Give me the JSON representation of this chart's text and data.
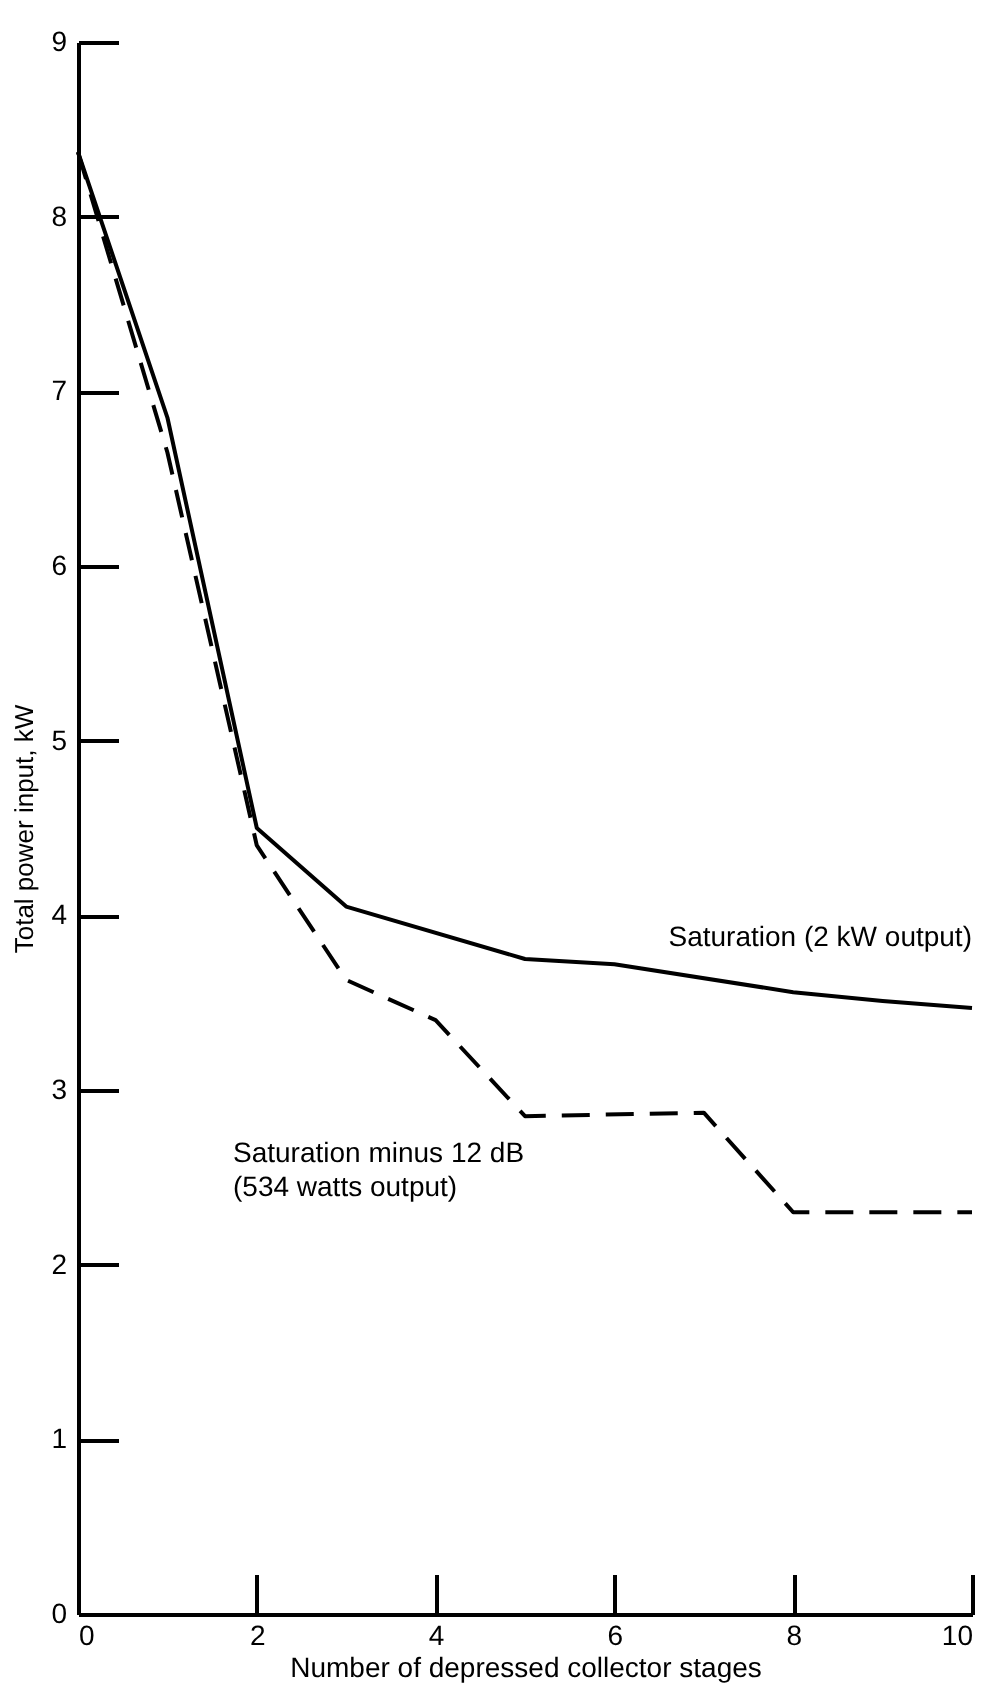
{
  "chart_data": {
    "type": "line",
    "xlabel": "Number of depressed collector stages",
    "ylabel": "Total power input, kW",
    "xlim": [
      0,
      10
    ],
    "ylim": [
      0,
      9
    ],
    "xticks": [
      0,
      2,
      4,
      6,
      8,
      10
    ],
    "yticks": [
      0,
      1,
      2,
      3,
      4,
      5,
      6,
      7,
      8,
      9
    ],
    "grid": false,
    "legend": false,
    "marker": "none",
    "series": [
      {
        "name": "Saturation (2 kW output)",
        "color": "#000000",
        "line_style": "solid",
        "x": [
          0,
          1,
          2,
          3,
          5,
          6,
          8,
          9,
          10
        ],
        "values": [
          8.37,
          6.85,
          4.5,
          4.05,
          3.75,
          3.72,
          3.56,
          3.51,
          3.47
        ]
      },
      {
        "name": "Saturation minus 12 dB\n(534 watts output)",
        "color": "#000000",
        "line_style": "dashed",
        "x": [
          0,
          1,
          2,
          3,
          4,
          5,
          7,
          8,
          10
        ],
        "values": [
          8.37,
          6.65,
          4.4,
          3.63,
          3.4,
          2.85,
          2.87,
          2.3,
          2.3
        ]
      }
    ]
  }
}
